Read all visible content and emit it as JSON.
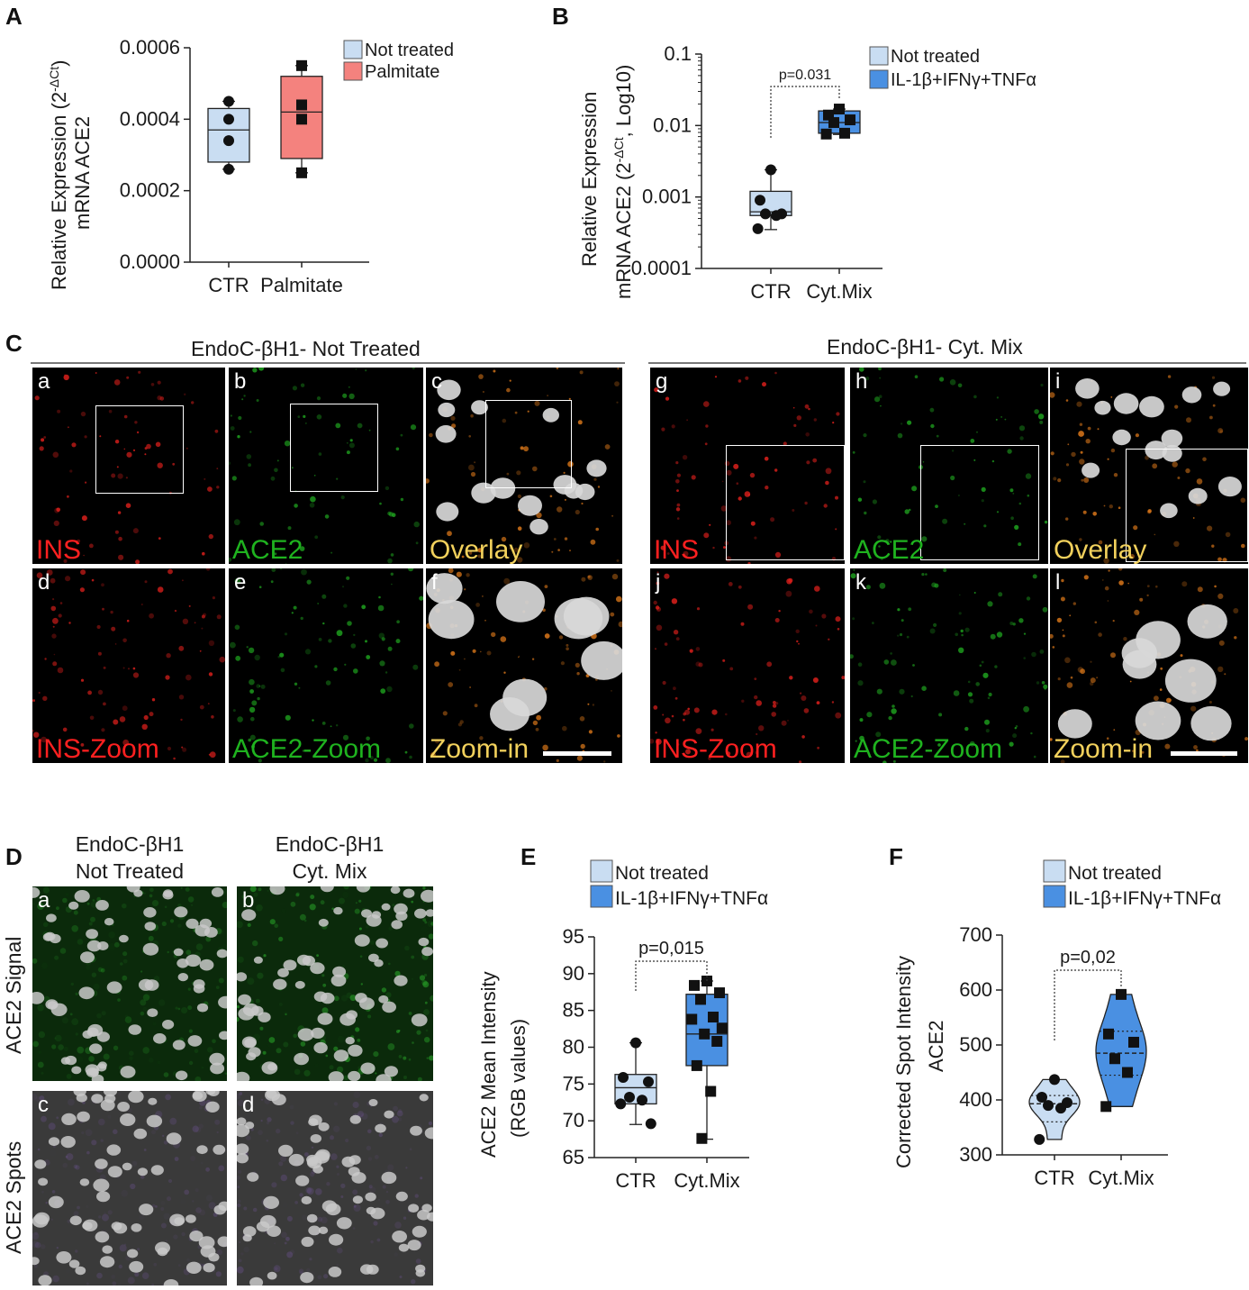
{
  "panel_letters": [
    "A",
    "B",
    "C",
    "D",
    "E",
    "F"
  ],
  "chart_data": [
    {
      "panel": "A",
      "type": "box",
      "ylabel_line1": "Relative Expression (2",
      "ylabel_sup": "-ΔCt",
      "ylabel_line1_end": ")",
      "ylabel_line2": "mRNA ACE2",
      "categories": [
        "CTR",
        "Palmitate"
      ],
      "ylim": [
        0,
        0.0006
      ],
      "yticks": [
        "0.0000",
        "0.0002",
        "0.0004",
        "0.0006"
      ],
      "ytick_values": [
        0,
        0.0002,
        0.0004,
        0.0006
      ],
      "legend": [
        "Not treated",
        "Palmitate"
      ],
      "colors": [
        "#c9ddf2",
        "#f4827e"
      ],
      "series": [
        {
          "name": "Not treated",
          "box": {
            "min": 0.00026,
            "q1": 0.00028,
            "median": 0.00037,
            "q3": 0.00043,
            "max": 0.00045
          },
          "points": [
            0.00045,
            0.0004,
            0.00034,
            0.00026
          ],
          "marker": "circle"
        },
        {
          "name": "Palmitate",
          "box": {
            "min": 0.00025,
            "q1": 0.00029,
            "median": 0.00042,
            "q3": 0.00052,
            "max": 0.00055
          },
          "points": [
            0.00055,
            0.00044,
            0.0004,
            0.00025
          ],
          "marker": "square"
        }
      ]
    },
    {
      "panel": "B",
      "type": "box",
      "scale": "log",
      "ylabel_line1": "Relative Expression",
      "ylabel_line2": "mRNA ACE2 (2",
      "ylabel_sup": "-ΔCt",
      "ylabel_line2_end": ", Log10)",
      "categories": [
        "CTR",
        "Cyt.Mix"
      ],
      "ylim": [
        0.0001,
        0.1
      ],
      "yticks": [
        "0.0001",
        "0.001",
        "0.01",
        "0.1"
      ],
      "ytick_values": [
        0.0001,
        0.001,
        0.01,
        0.1
      ],
      "legend": [
        "Not treated",
        "IL-1β+IFNγ+TNFα"
      ],
      "colors": [
        "#c9ddf2",
        "#4a90e2"
      ],
      "pvalue": "p=0.031",
      "series": [
        {
          "name": "Not treated",
          "box": {
            "min": 0.00035,
            "q1": 0.00055,
            "median": 0.00062,
            "q3": 0.0012,
            "max": 0.0024
          },
          "points": [
            0.0024,
            0.0009,
            0.00058,
            0.00058,
            0.00055,
            0.00036
          ],
          "marker": "circle"
        },
        {
          "name": "IL-1β+IFNγ+TNFα",
          "box": {
            "min": 0.0075,
            "q1": 0.0078,
            "median": 0.011,
            "q3": 0.016,
            "max": 0.017
          },
          "points": [
            0.017,
            0.014,
            0.012,
            0.011,
            0.0078,
            0.0076
          ],
          "marker": "square"
        }
      ]
    },
    {
      "panel": "E",
      "type": "box",
      "ylabel_line1": "ACE2 Mean Intensity",
      "ylabel_line2": "(RGB values)",
      "categories": [
        "CTR",
        "Cyt.Mix"
      ],
      "ylim": [
        65,
        95
      ],
      "yticks": [
        "65",
        "70",
        "75",
        "80",
        "85",
        "90",
        "95"
      ],
      "ytick_values": [
        65,
        70,
        75,
        80,
        85,
        90,
        95
      ],
      "legend": [
        "Not treated",
        "IL-1β+IFNγ+TNFα"
      ],
      "colors": [
        "#c9ddf2",
        "#4a90e2"
      ],
      "pvalue": "p=0,015",
      "series": [
        {
          "name": "Not treated",
          "box": {
            "min": 69.5,
            "q1": 72.3,
            "median": 74.5,
            "q3": 76.3,
            "max": 80.6
          },
          "points": [
            80.6,
            75.9,
            75.3,
            73.2,
            72.8,
            72.3,
            69.6
          ],
          "marker": "circle"
        },
        {
          "name": "IL-1β+IFNγ+TNFα",
          "box": {
            "min": 67.5,
            "q1": 77.5,
            "median": 81.8,
            "q3": 87.2,
            "max": 89
          },
          "points": [
            89,
            88.4,
            87.4,
            86.5,
            84.1,
            83.8,
            82.6,
            81.8,
            80.8,
            77.5,
            74,
            67.6
          ],
          "marker": "square"
        }
      ]
    },
    {
      "panel": "F",
      "type": "violin",
      "ylabel_line1": "Corrected Spot Intensity",
      "ylabel_line2": "ACE2",
      "categories": [
        "CTR",
        "Cyt.Mix"
      ],
      "ylim": [
        300,
        700
      ],
      "yticks": [
        "300",
        "400",
        "500",
        "600",
        "700"
      ],
      "ytick_values": [
        300,
        400,
        500,
        600,
        700
      ],
      "legend": [
        "Not treated",
        "IL-1β+IFNγ+TNFα"
      ],
      "colors": [
        "#c9ddf2",
        "#4a90e2"
      ],
      "pvalue": "p=0,02",
      "series": [
        {
          "name": "Not treated",
          "median": 393,
          "q1": 360,
          "q3": 408,
          "points": [
            437,
            405,
            395,
            390,
            385,
            328
          ],
          "marker": "circle"
        },
        {
          "name": "IL-1β+IFNγ+TNFα",
          "median": 485,
          "q1": 445,
          "q3": 525,
          "points": [
            592,
            520,
            505,
            475,
            450,
            388
          ],
          "marker": "square"
        }
      ]
    }
  ],
  "panel_c": {
    "groups": [
      "EndoC-βH1-  Not Treated",
      "EndoC-βH1-  Cyt. Mix"
    ],
    "letters": [
      "a",
      "b",
      "c",
      "d",
      "e",
      "f",
      "g",
      "h",
      "i",
      "j",
      "k",
      "l"
    ],
    "labels": [
      "INS",
      "ACE2",
      "Overlay",
      "INS-Zoom",
      "ACE2-Zoom",
      "Zoom-in",
      "INS",
      "ACE2",
      "Overlay",
      "INS-Zoom",
      "ACE2-Zoom",
      "Zoom-in"
    ],
    "label_colors": {
      "red": "#ff2020",
      "green": "#1fb31f",
      "yellow": "#f2d15c"
    }
  },
  "panel_d": {
    "col_titles": [
      "EndoC-βH1\nNot Treated",
      "EndoC-βH1\nCyt. Mix"
    ],
    "row_titles": [
      "ACE2 Signal",
      "ACE2 Spots"
    ],
    "letters": [
      "a",
      "b",
      "c",
      "d"
    ]
  }
}
